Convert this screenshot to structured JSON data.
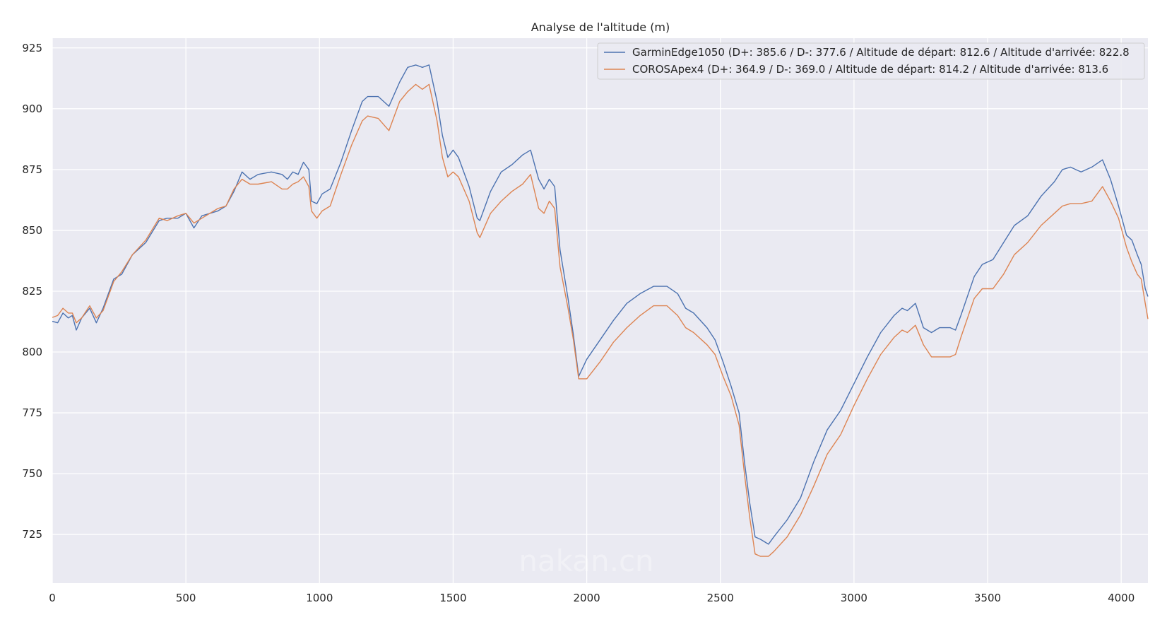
{
  "chart_data": {
    "type": "line",
    "title": "Analyse de l'altitude (m)",
    "xlabel": "",
    "ylabel": "",
    "xlim": [
      0,
      4100
    ],
    "ylim": [
      705,
      929
    ],
    "x_ticks": [
      "0",
      "500",
      "1000",
      "1500",
      "2000",
      "2500",
      "3000",
      "3500",
      "4000"
    ],
    "y_ticks": [
      "725",
      "750",
      "775",
      "800",
      "825",
      "850",
      "875",
      "900",
      "925"
    ],
    "grid": true,
    "legend_position": "top-right",
    "series": [
      {
        "name": "GarminEdge1050 (D+: 385.6 / D-: 377.6 / Altitude de départ: 812.6 / Altitude d'arrivée: 822.8",
        "color": "#4c72b0",
        "points": [
          [
            0,
            812.6
          ],
          [
            20,
            812
          ],
          [
            40,
            816
          ],
          [
            60,
            814
          ],
          [
            75,
            815
          ],
          [
            90,
            809
          ],
          [
            110,
            814
          ],
          [
            140,
            818
          ],
          [
            165,
            812
          ],
          [
            190,
            818
          ],
          [
            230,
            830
          ],
          [
            260,
            832
          ],
          [
            300,
            840
          ],
          [
            350,
            845
          ],
          [
            400,
            854
          ],
          [
            430,
            855
          ],
          [
            470,
            855
          ],
          [
            500,
            857
          ],
          [
            530,
            851
          ],
          [
            560,
            856
          ],
          [
            620,
            858
          ],
          [
            650,
            860
          ],
          [
            680,
            866
          ],
          [
            710,
            874
          ],
          [
            740,
            871
          ],
          [
            770,
            873
          ],
          [
            820,
            874
          ],
          [
            860,
            873
          ],
          [
            880,
            871
          ],
          [
            900,
            874
          ],
          [
            920,
            873
          ],
          [
            940,
            878
          ],
          [
            960,
            875
          ],
          [
            970,
            862
          ],
          [
            990,
            861
          ],
          [
            1010,
            865
          ],
          [
            1040,
            867
          ],
          [
            1080,
            878
          ],
          [
            1120,
            891
          ],
          [
            1160,
            903
          ],
          [
            1180,
            905
          ],
          [
            1220,
            905
          ],
          [
            1260,
            901
          ],
          [
            1300,
            911
          ],
          [
            1330,
            917
          ],
          [
            1360,
            918
          ],
          [
            1385,
            917
          ],
          [
            1410,
            918
          ],
          [
            1440,
            903
          ],
          [
            1460,
            889
          ],
          [
            1480,
            880
          ],
          [
            1500,
            883
          ],
          [
            1520,
            880
          ],
          [
            1560,
            868
          ],
          [
            1590,
            855
          ],
          [
            1600,
            854
          ],
          [
            1640,
            866
          ],
          [
            1680,
            874
          ],
          [
            1720,
            877
          ],
          [
            1760,
            881
          ],
          [
            1790,
            883
          ],
          [
            1820,
            871
          ],
          [
            1840,
            867
          ],
          [
            1860,
            871
          ],
          [
            1880,
            868
          ],
          [
            1900,
            842
          ],
          [
            1930,
            822
          ],
          [
            1950,
            807
          ],
          [
            1970,
            790
          ],
          [
            2000,
            797
          ],
          [
            2050,
            805
          ],
          [
            2100,
            813
          ],
          [
            2150,
            820
          ],
          [
            2200,
            824
          ],
          [
            2250,
            827
          ],
          [
            2300,
            827
          ],
          [
            2340,
            824
          ],
          [
            2370,
            818
          ],
          [
            2400,
            816
          ],
          [
            2450,
            810
          ],
          [
            2480,
            805
          ],
          [
            2510,
            796
          ],
          [
            2540,
            786
          ],
          [
            2570,
            775
          ],
          [
            2590,
            755
          ],
          [
            2610,
            738
          ],
          [
            2630,
            724
          ],
          [
            2650,
            723
          ],
          [
            2680,
            721
          ],
          [
            2700,
            724
          ],
          [
            2750,
            731
          ],
          [
            2800,
            740
          ],
          [
            2850,
            755
          ],
          [
            2900,
            768
          ],
          [
            2950,
            776
          ],
          [
            3000,
            787
          ],
          [
            3050,
            798
          ],
          [
            3100,
            808
          ],
          [
            3150,
            815
          ],
          [
            3180,
            818
          ],
          [
            3200,
            817
          ],
          [
            3230,
            820
          ],
          [
            3260,
            810
          ],
          [
            3290,
            808
          ],
          [
            3320,
            810
          ],
          [
            3360,
            810
          ],
          [
            3380,
            809
          ],
          [
            3400,
            815
          ],
          [
            3450,
            831
          ],
          [
            3480,
            836
          ],
          [
            3520,
            838
          ],
          [
            3560,
            845
          ],
          [
            3600,
            852
          ],
          [
            3650,
            856
          ],
          [
            3700,
            864
          ],
          [
            3750,
            870
          ],
          [
            3780,
            875
          ],
          [
            3810,
            876
          ],
          [
            3850,
            874
          ],
          [
            3890,
            876
          ],
          [
            3930,
            879
          ],
          [
            3960,
            871
          ],
          [
            3990,
            860
          ],
          [
            4020,
            848
          ],
          [
            4040,
            846
          ],
          [
            4060,
            840
          ],
          [
            4075,
            836
          ],
          [
            4090,
            826
          ],
          [
            4100,
            822.8
          ]
        ]
      },
      {
        "name": "COROSApex4 (D+: 364.9 / D-: 369.0 / Altitude de départ: 814.2 / Altitude d'arrivée: 813.6",
        "color": "#dd8452",
        "points": [
          [
            0,
            814.2
          ],
          [
            20,
            815
          ],
          [
            40,
            818
          ],
          [
            60,
            816
          ],
          [
            75,
            816
          ],
          [
            90,
            812
          ],
          [
            110,
            814
          ],
          [
            140,
            819
          ],
          [
            165,
            814
          ],
          [
            190,
            817
          ],
          [
            230,
            829
          ],
          [
            260,
            833
          ],
          [
            300,
            840
          ],
          [
            350,
            846
          ],
          [
            400,
            855
          ],
          [
            430,
            854
          ],
          [
            470,
            856
          ],
          [
            500,
            857
          ],
          [
            530,
            853
          ],
          [
            560,
            855
          ],
          [
            620,
            859
          ],
          [
            650,
            860
          ],
          [
            680,
            867
          ],
          [
            710,
            871
          ],
          [
            740,
            869
          ],
          [
            770,
            869
          ],
          [
            820,
            870
          ],
          [
            860,
            867
          ],
          [
            880,
            867
          ],
          [
            900,
            869
          ],
          [
            920,
            870
          ],
          [
            940,
            872
          ],
          [
            960,
            868
          ],
          [
            970,
            858
          ],
          [
            990,
            855
          ],
          [
            1010,
            858
          ],
          [
            1040,
            860
          ],
          [
            1080,
            873
          ],
          [
            1120,
            885
          ],
          [
            1160,
            895
          ],
          [
            1180,
            897
          ],
          [
            1220,
            896
          ],
          [
            1260,
            891
          ],
          [
            1300,
            903
          ],
          [
            1330,
            907
          ],
          [
            1360,
            910
          ],
          [
            1385,
            908
          ],
          [
            1410,
            910
          ],
          [
            1440,
            895
          ],
          [
            1460,
            880
          ],
          [
            1480,
            872
          ],
          [
            1500,
            874
          ],
          [
            1520,
            872
          ],
          [
            1560,
            862
          ],
          [
            1590,
            849
          ],
          [
            1600,
            847
          ],
          [
            1640,
            857
          ],
          [
            1680,
            862
          ],
          [
            1720,
            866
          ],
          [
            1760,
            869
          ],
          [
            1790,
            873
          ],
          [
            1820,
            859
          ],
          [
            1840,
            857
          ],
          [
            1860,
            862
          ],
          [
            1880,
            859
          ],
          [
            1900,
            835
          ],
          [
            1930,
            818
          ],
          [
            1950,
            805
          ],
          [
            1970,
            789
          ],
          [
            2000,
            789
          ],
          [
            2050,
            796
          ],
          [
            2100,
            804
          ],
          [
            2150,
            810
          ],
          [
            2200,
            815
          ],
          [
            2250,
            819
          ],
          [
            2300,
            819
          ],
          [
            2340,
            815
          ],
          [
            2370,
            810
          ],
          [
            2400,
            808
          ],
          [
            2450,
            803
          ],
          [
            2480,
            799
          ],
          [
            2510,
            790
          ],
          [
            2540,
            782
          ],
          [
            2570,
            770
          ],
          [
            2590,
            750
          ],
          [
            2610,
            732
          ],
          [
            2630,
            717
          ],
          [
            2650,
            716
          ],
          [
            2680,
            716
          ],
          [
            2700,
            718
          ],
          [
            2750,
            724
          ],
          [
            2800,
            733
          ],
          [
            2850,
            745
          ],
          [
            2900,
            758
          ],
          [
            2950,
            766
          ],
          [
            3000,
            778
          ],
          [
            3050,
            789
          ],
          [
            3100,
            799
          ],
          [
            3150,
            806
          ],
          [
            3180,
            809
          ],
          [
            3200,
            808
          ],
          [
            3230,
            811
          ],
          [
            3260,
            803
          ],
          [
            3290,
            798
          ],
          [
            3320,
            798
          ],
          [
            3360,
            798
          ],
          [
            3380,
            799
          ],
          [
            3400,
            806
          ],
          [
            3450,
            822
          ],
          [
            3480,
            826
          ],
          [
            3520,
            826
          ],
          [
            3560,
            832
          ],
          [
            3600,
            840
          ],
          [
            3650,
            845
          ],
          [
            3700,
            852
          ],
          [
            3750,
            857
          ],
          [
            3780,
            860
          ],
          [
            3810,
            861
          ],
          [
            3850,
            861
          ],
          [
            3890,
            862
          ],
          [
            3930,
            868
          ],
          [
            3960,
            862
          ],
          [
            3990,
            855
          ],
          [
            4020,
            843
          ],
          [
            4040,
            837
          ],
          [
            4060,
            832
          ],
          [
            4075,
            830
          ],
          [
            4090,
            820
          ],
          [
            4100,
            813.6
          ]
        ]
      }
    ],
    "watermark": "nakan.cn"
  }
}
